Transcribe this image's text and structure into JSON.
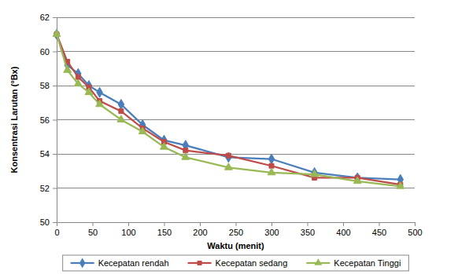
{
  "chart_data": {
    "type": "line",
    "x_label": "Waktu (menit)",
    "y_label": "Konsentrasi Larutan (°Bx)",
    "x": [
      0,
      15,
      30,
      45,
      60,
      90,
      120,
      150,
      180,
      240,
      300,
      360,
      420,
      480
    ],
    "series": [
      {
        "name": "Kecepatan rendah",
        "color": "#4a7ebb",
        "marker": "diamond",
        "values": [
          61.0,
          59.2,
          58.7,
          58.0,
          57.6,
          56.9,
          55.7,
          54.8,
          54.5,
          53.8,
          53.7,
          52.9,
          52.6,
          52.5
        ]
      },
      {
        "name": "Kecepatan sedang",
        "color": "#be4b48",
        "marker": "square",
        "values": [
          61.0,
          59.4,
          58.5,
          57.9,
          57.1,
          56.5,
          55.5,
          54.7,
          54.2,
          53.9,
          53.3,
          52.6,
          52.6,
          52.2
        ]
      },
      {
        "name": "Kecepatan Tinggi",
        "color": "#98b954",
        "marker": "triangle",
        "values": [
          61.0,
          58.9,
          58.1,
          57.6,
          56.9,
          56.0,
          55.3,
          54.4,
          53.8,
          53.2,
          52.9,
          52.8,
          52.4,
          52.1
        ]
      }
    ],
    "xlim": [
      0,
      500
    ],
    "xticks": [
      0,
      50,
      100,
      150,
      200,
      250,
      300,
      350,
      400,
      450,
      500
    ],
    "ylim": [
      50,
      62
    ],
    "yticks": [
      50,
      52,
      54,
      56,
      58,
      60,
      62
    ],
    "grid": true,
    "legend": "bottom"
  }
}
